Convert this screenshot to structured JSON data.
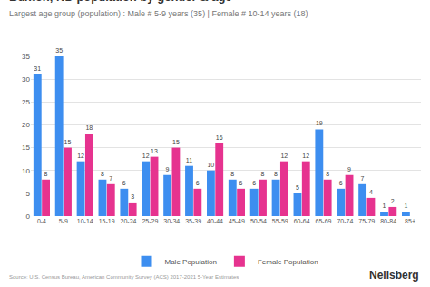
{
  "chart_data": {
    "type": "bar",
    "title": "Buxton, ND population by gender & age",
    "subtitle": "Largest age group (population) : Male # 5-9 years (35) | Female # 10-14 years (18)",
    "annotations": [
      "Source: U.S. Census Bureau, American Community Survey (ACS) 2017-2021 5-Year Estimates",
      "Neilsberg"
    ],
    "categories": [
      "0-4",
      "5-9",
      "10-14",
      "15-19",
      "20-24",
      "25-29",
      "30-34",
      "35-39",
      "40-44",
      "45-49",
      "50-54",
      "55-59",
      "60-64",
      "65-69",
      "70-74",
      "75-79",
      "80-84",
      "85+"
    ],
    "series": [
      {
        "name": "Male Population",
        "color": "#3d8ef0",
        "values": [
          31,
          35,
          12,
          8,
          6,
          12,
          9,
          11,
          10,
          8,
          6,
          8,
          5,
          19,
          6,
          7,
          1,
          1
        ]
      },
      {
        "name": "Female Population",
        "color": "#e6338f",
        "values": [
          8,
          15,
          18,
          7,
          3,
          13,
          15,
          6,
          16,
          6,
          8,
          12,
          12,
          8,
          9,
          4,
          2,
          null
        ]
      }
    ],
    "ylim": [
      0,
      35
    ],
    "yticks": [
      0,
      5,
      10,
      15,
      20,
      25,
      30,
      35
    ],
    "grid": true,
    "legend": "bottom",
    "data_labels": true
  }
}
